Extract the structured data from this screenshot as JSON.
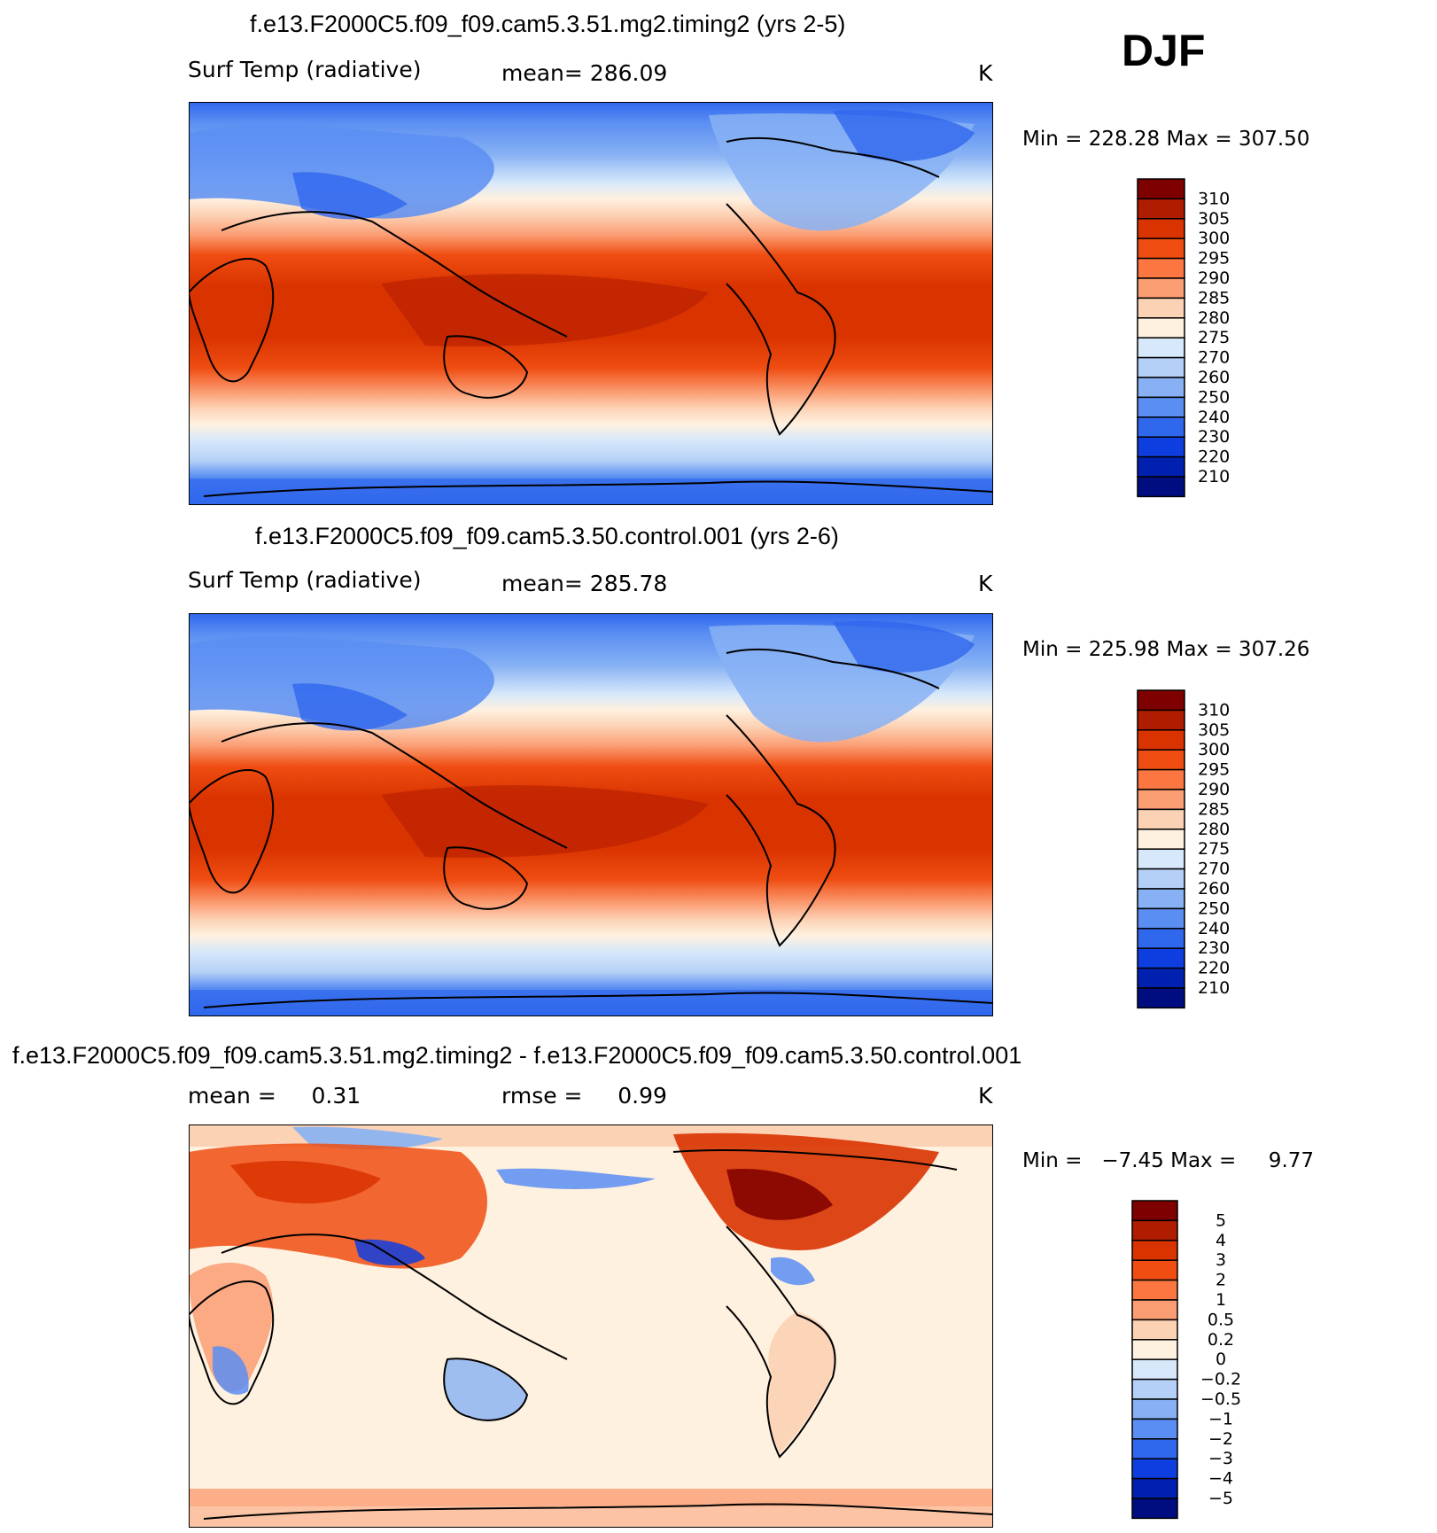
{
  "season": "DJF",
  "panels": [
    {
      "title": "f.e13.F2000C5.f09_f09.cam5.3.51.mg2.timing2 (yrs 2-5)",
      "left_label": "Surf Temp (radiative)",
      "center_label": "mean= 286.09",
      "units": "K",
      "minmax": "Min = 228.28 Max = 307.50",
      "colorbar": {
        "labels": [
          "310",
          "305",
          "300",
          "295",
          "290",
          "285",
          "280",
          "275",
          "270",
          "260",
          "250",
          "240",
          "230",
          "220",
          "210"
        ],
        "colors": [
          "#7f0000",
          "#b01c00",
          "#d93300",
          "#ef4d12",
          "#fb7640",
          "#fb9d73",
          "#fcd2b5",
          "#fff1e0",
          "#d6e8fa",
          "#b5d0f7",
          "#87b1f4",
          "#5a8ef2",
          "#2f67ed",
          "#0f3ee0",
          "#0021b0",
          "#000d80"
        ]
      },
      "chart_data": {
        "type": "heatmap",
        "field": "Surf Temp (radiative)",
        "units": "K",
        "mean": 286.09,
        "min": 228.28,
        "max": 307.5,
        "contour_levels": [
          210,
          220,
          230,
          240,
          250,
          260,
          270,
          275,
          280,
          285,
          290,
          295,
          300,
          305,
          310
        ]
      }
    },
    {
      "title": "f.e13.F2000C5.f09_f09.cam5.3.50.control.001 (yrs 2-6)",
      "left_label": "Surf Temp (radiative)",
      "center_label": "mean= 285.78",
      "units": "K",
      "minmax": "Min = 225.98 Max = 307.26",
      "colorbar": {
        "labels": [
          "310",
          "305",
          "300",
          "295",
          "290",
          "285",
          "280",
          "275",
          "270",
          "260",
          "250",
          "240",
          "230",
          "220",
          "210"
        ],
        "colors": [
          "#7f0000",
          "#b01c00",
          "#d93300",
          "#ef4d12",
          "#fb7640",
          "#fb9d73",
          "#fcd2b5",
          "#fff1e0",
          "#d6e8fa",
          "#b5d0f7",
          "#87b1f4",
          "#5a8ef2",
          "#2f67ed",
          "#0f3ee0",
          "#0021b0",
          "#000d80"
        ]
      },
      "chart_data": {
        "type": "heatmap",
        "field": "Surf Temp (radiative)",
        "units": "K",
        "mean": 285.78,
        "min": 225.98,
        "max": 307.26,
        "contour_levels": [
          210,
          220,
          230,
          240,
          250,
          260,
          270,
          275,
          280,
          285,
          290,
          295,
          300,
          305,
          310
        ]
      }
    },
    {
      "title": "f.e13.F2000C5.f09_f09.cam5.3.51.mg2.timing2 - f.e13.F2000C5.f09_f09.cam5.3.50.control.001",
      "left_label": "mean =     0.31",
      "center_label": "rmse =     0.99",
      "units": "K",
      "minmax": "Min =   −7.45 Max =     9.77",
      "colorbar": {
        "labels": [
          "5",
          "4",
          "3",
          "2",
          "1",
          "0.5",
          "0.2",
          "0",
          "−0.2",
          "−0.5",
          "−1",
          "−2",
          "−3",
          "−4",
          "−5"
        ],
        "colors": [
          "#7f0000",
          "#b01c00",
          "#d93300",
          "#ef4d12",
          "#fb7640",
          "#fb9d73",
          "#fcd2b5",
          "#fff1e0",
          "#d6e8fa",
          "#b5d0f7",
          "#87b1f4",
          "#5a8ef2",
          "#2f67ed",
          "#0f3ee0",
          "#0021b0",
          "#000d80"
        ]
      },
      "chart_data": {
        "type": "heatmap",
        "field": "difference",
        "units": "K",
        "mean": 0.31,
        "rmse": 0.99,
        "min": -7.45,
        "max": 9.77,
        "contour_levels": [
          -5,
          -4,
          -3,
          -2,
          -1,
          -0.5,
          -0.2,
          0,
          0.2,
          0.5,
          1,
          2,
          3,
          4,
          5
        ]
      }
    }
  ]
}
